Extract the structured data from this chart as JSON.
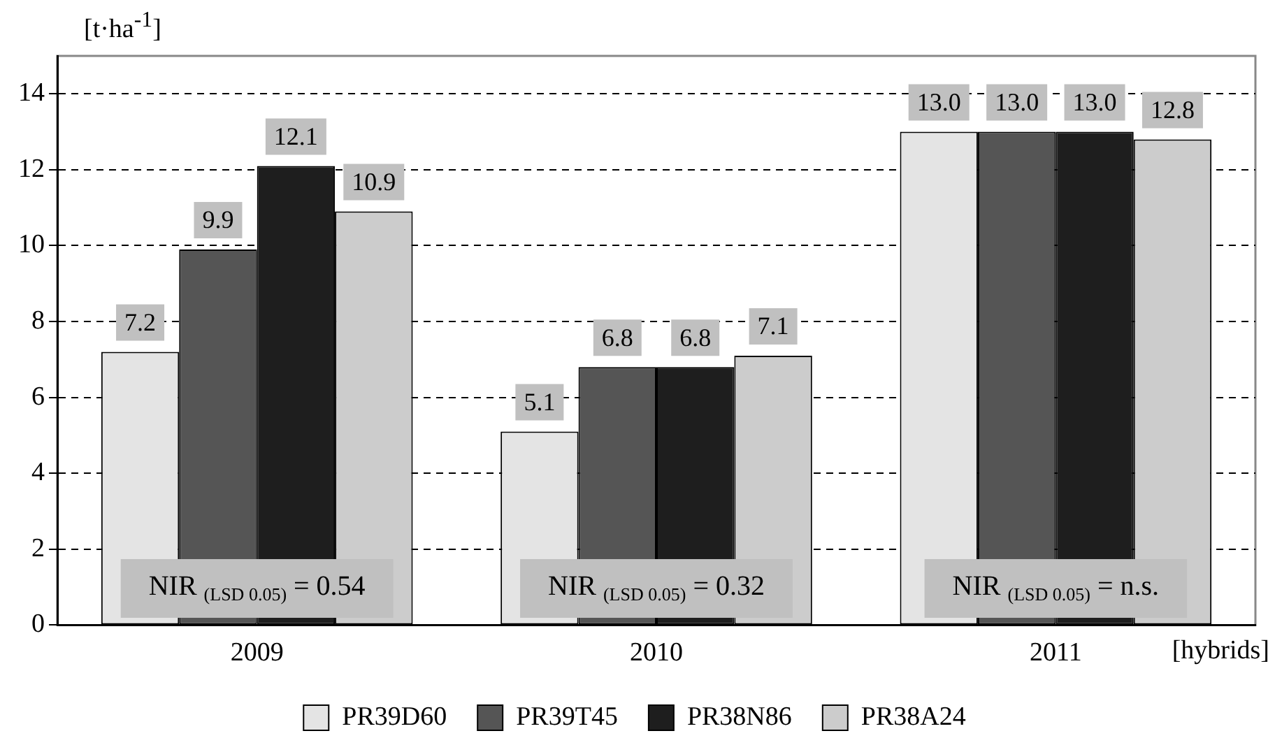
{
  "chart_data": {
    "type": "bar",
    "categories": [
      "2009",
      "2010",
      "2011"
    ],
    "ylabel": "[t·ha$^{-1}$]",
    "xlabel": "[hybrids]",
    "series": [
      {
        "name": "PR39D60",
        "color": "#e4e4e4",
        "values": [
          7.2,
          5.1,
          13.0
        ],
        "value_labels": [
          "7.2",
          "5.1",
          "13.0"
        ]
      },
      {
        "name": "PR39T45",
        "color": "#555555",
        "values": [
          9.9,
          6.8,
          13.0
        ],
        "value_labels": [
          "9.9",
          "6.8",
          "13.0"
        ]
      },
      {
        "name": "PR38N86",
        "color": "#1e1e1e",
        "values": [
          12.1,
          6.8,
          13.0
        ],
        "value_labels": [
          "12.1",
          "6.8",
          "13.0"
        ]
      },
      {
        "name": "PR38A24",
        "color": "#cccccc",
        "values": [
          10.9,
          7.1,
          12.8
        ],
        "value_labels": [
          "10.9",
          "7.1",
          "12.8"
        ]
      }
    ],
    "ylim": [
      0,
      15
    ],
    "yticks": [
      0,
      2,
      4,
      6,
      8,
      10,
      12,
      14
    ],
    "grid": "y",
    "legend": "bottom",
    "annotations": [
      {
        "text": "NIR $_{(LSD 0.05)}$ = 0.54",
        "x": "2009",
        "y": 1
      },
      {
        "text": "NIR $_{(LSD 0.05)}$ = 0.32",
        "x": "2010",
        "y": 1
      },
      {
        "text": "NIR $_{(LSD 0.05)}$ = n.s.",
        "x": "2011",
        "y": 1
      }
    ]
  }
}
